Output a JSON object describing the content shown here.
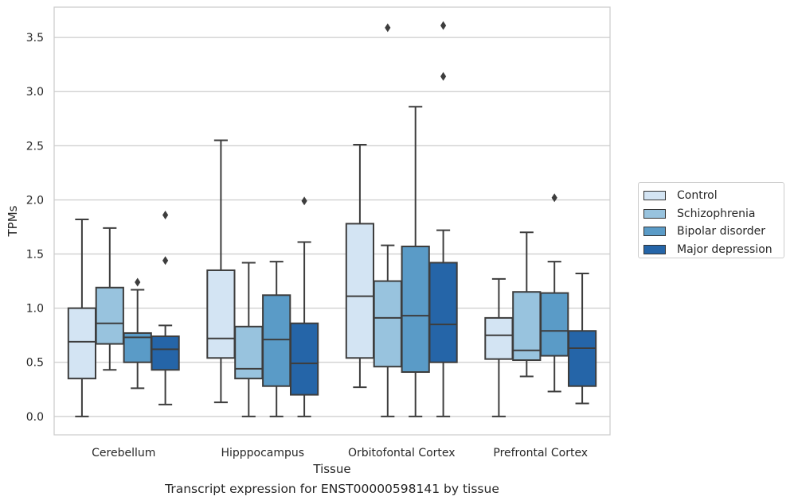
{
  "chart_data": {
    "type": "box",
    "xlabel": "Tissue",
    "ylabel": "TPMs",
    "ylim": [
      -0.17,
      3.78
    ],
    "yticks": [
      0.0,
      0.5,
      1.0,
      1.5,
      2.0,
      2.5,
      3.0,
      3.5
    ],
    "ytick_labels": [
      "0.0",
      "0.5",
      "1.0",
      "1.5",
      "2.0",
      "2.5",
      "3.0",
      "3.5"
    ],
    "grid": "horizontal",
    "legend_position": "right",
    "categories": [
      "Cerebellum",
      "Hipppocampus",
      "Orbitofontal Cortex",
      "Prefrontal Cortex"
    ],
    "series": [
      {
        "name": "Control",
        "color": "#d3e4f3",
        "boxes": [
          {
            "whisker_low": 0.0,
            "q1": 0.35,
            "median": 0.69,
            "q3": 1.0,
            "whisker_high": 1.82,
            "outliers": []
          },
          {
            "whisker_low": 0.13,
            "q1": 0.54,
            "median": 0.72,
            "q3": 1.35,
            "whisker_high": 2.55,
            "outliers": []
          },
          {
            "whisker_low": 0.27,
            "q1": 0.54,
            "median": 1.11,
            "q3": 1.78,
            "whisker_high": 2.51,
            "outliers": []
          },
          {
            "whisker_low": 0.0,
            "q1": 0.53,
            "median": 0.75,
            "q3": 0.91,
            "whisker_high": 1.27,
            "outliers": []
          }
        ]
      },
      {
        "name": "Schizophrenia",
        "color": "#98c3de",
        "boxes": [
          {
            "whisker_low": 0.43,
            "q1": 0.67,
            "median": 0.86,
            "q3": 1.19,
            "whisker_high": 1.74,
            "outliers": []
          },
          {
            "whisker_low": 0.0,
            "q1": 0.35,
            "median": 0.44,
            "q3": 0.83,
            "whisker_high": 1.42,
            "outliers": []
          },
          {
            "whisker_low": 0.0,
            "q1": 0.46,
            "median": 0.91,
            "q3": 1.25,
            "whisker_high": 1.58,
            "outliers": [
              3.59
            ]
          },
          {
            "whisker_low": 0.37,
            "q1": 0.52,
            "median": 0.61,
            "q3": 1.15,
            "whisker_high": 1.7,
            "outliers": []
          }
        ]
      },
      {
        "name": "Bipolar disorder",
        "color": "#5a9bc7",
        "boxes": [
          {
            "whisker_low": 0.26,
            "q1": 0.5,
            "median": 0.73,
            "q3": 0.77,
            "whisker_high": 1.17,
            "outliers": [
              1.24
            ]
          },
          {
            "whisker_low": 0.0,
            "q1": 0.28,
            "median": 0.71,
            "q3": 1.12,
            "whisker_high": 1.43,
            "outliers": []
          },
          {
            "whisker_low": 0.0,
            "q1": 0.41,
            "median": 0.93,
            "q3": 1.57,
            "whisker_high": 2.86,
            "outliers": []
          },
          {
            "whisker_low": 0.23,
            "q1": 0.56,
            "median": 0.79,
            "q3": 1.14,
            "whisker_high": 1.43,
            "outliers": [
              2.02
            ]
          }
        ]
      },
      {
        "name": "Major depression",
        "color": "#2565a8",
        "boxes": [
          {
            "whisker_low": 0.11,
            "q1": 0.43,
            "median": 0.62,
            "q3": 0.74,
            "whisker_high": 0.84,
            "outliers": [
              1.44,
              1.86
            ]
          },
          {
            "whisker_low": 0.0,
            "q1": 0.2,
            "median": 0.49,
            "q3": 0.86,
            "whisker_high": 1.61,
            "outliers": [
              1.99
            ]
          },
          {
            "whisker_low": 0.0,
            "q1": 0.5,
            "median": 0.85,
            "q3": 1.42,
            "whisker_high": 1.72,
            "outliers": [
              3.14,
              3.61
            ]
          },
          {
            "whisker_low": 0.12,
            "q1": 0.28,
            "median": 0.63,
            "q3": 0.79,
            "whisker_high": 1.32,
            "outliers": []
          }
        ]
      }
    ]
  },
  "caption": "Transcript expression for ENST00000598141 by tissue"
}
